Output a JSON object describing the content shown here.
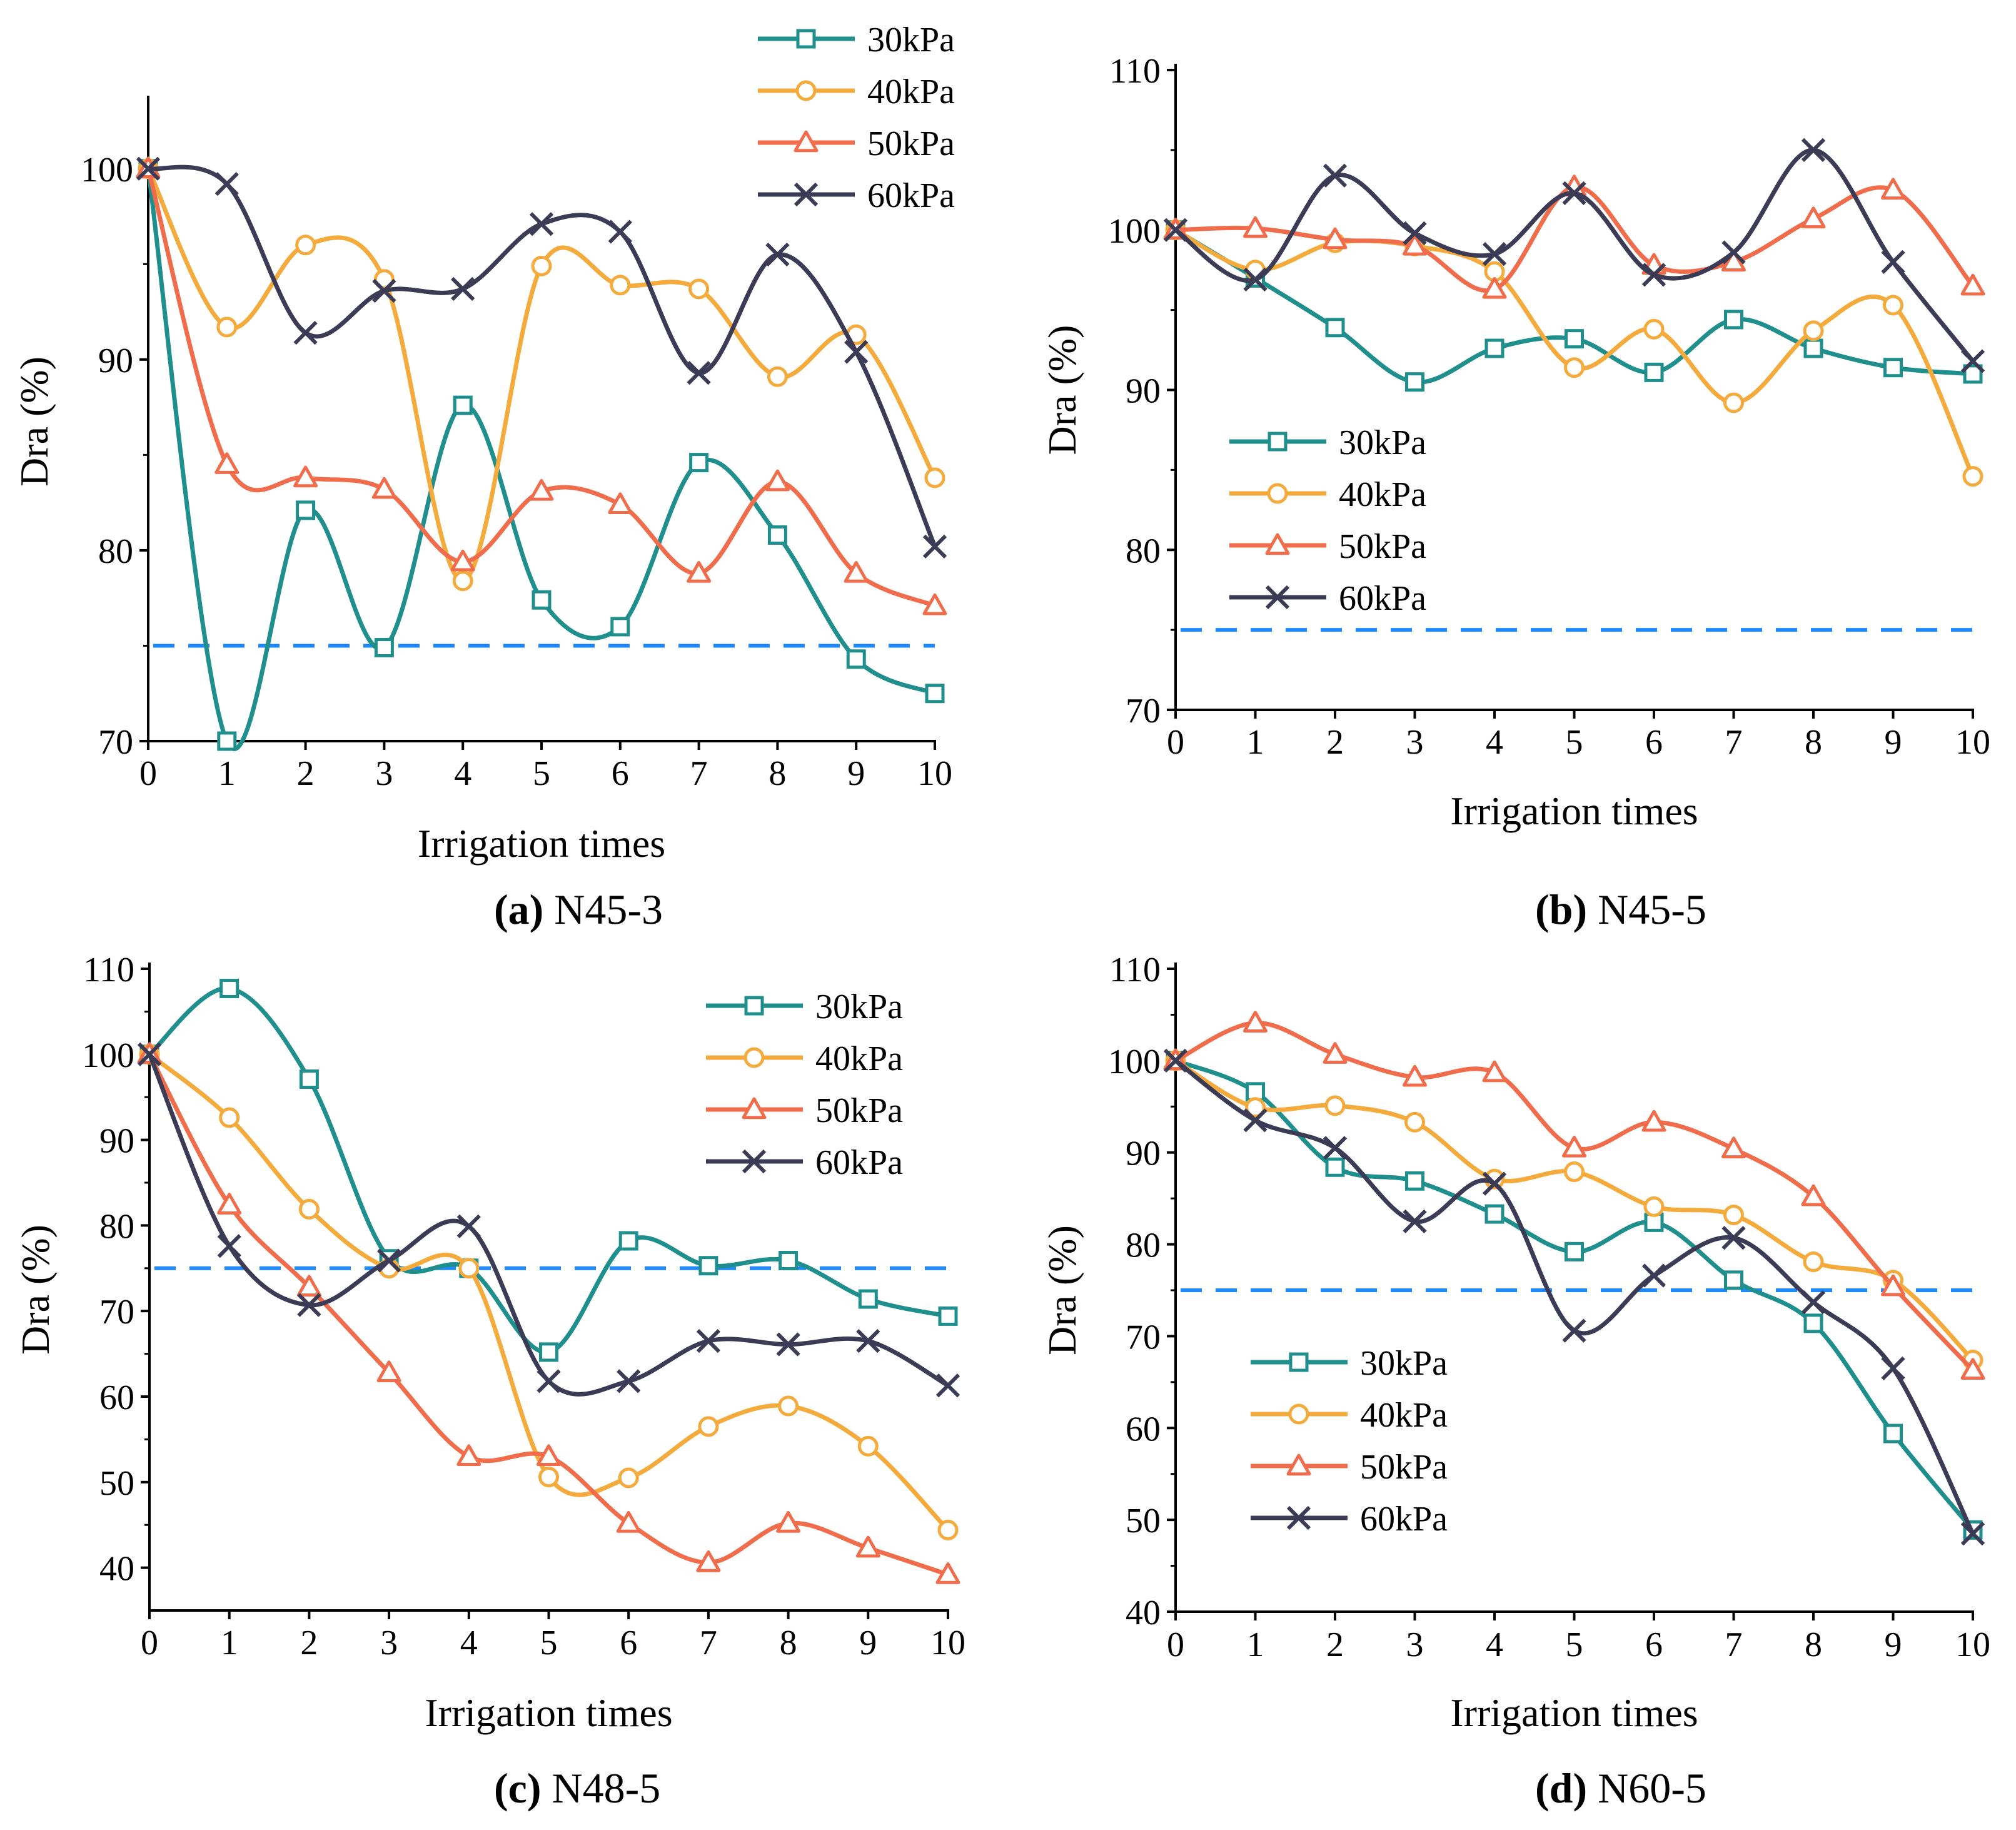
{
  "figure": {
    "series_colors": {
      "30kPa": "#1e8f8c",
      "40kPa": "#f5aa3c",
      "50kPa": "#f06c4b",
      "60kPa": "#3b3b55"
    },
    "threshold_color": "#1e88ff",
    "marker_names": {
      "30kPa": "square-marker",
      "40kPa": "circle-marker",
      "50kPa": "triangle-marker",
      "60kPa": "x-marker"
    }
  },
  "chart_data": [
    {
      "type": "line",
      "panel": "a",
      "caption_letter": "(a)",
      "caption_text": " N45-3",
      "title": "",
      "xlabel": "Irrigation times",
      "ylabel": "Dra (%)",
      "x": [
        0,
        1,
        2,
        3,
        4,
        5,
        6,
        7,
        8,
        9,
        10
      ],
      "xticks": [
        "0",
        "1",
        "2",
        "3",
        "4",
        "5",
        "6",
        "7",
        "8",
        "9",
        "10"
      ],
      "ylim": [
        70,
        103.5
      ],
      "yticks": [
        70,
        80,
        90,
        100
      ],
      "threshold": 75,
      "legend_position": "top-right",
      "series": [
        {
          "name": "30kPa",
          "values": [
            100,
            70.0,
            82.1,
            74.9,
            87.6,
            77.4,
            76.0,
            84.6,
            80.8,
            74.3,
            72.5
          ]
        },
        {
          "name": "40kPa",
          "values": [
            100,
            91.7,
            96.0,
            94.2,
            78.4,
            94.9,
            93.9,
            93.7,
            89.1,
            91.3,
            83.8
          ]
        },
        {
          "name": "50kPa",
          "values": [
            100,
            84.5,
            83.8,
            83.2,
            79.4,
            83.1,
            82.4,
            78.8,
            83.6,
            78.8,
            77.1
          ]
        },
        {
          "name": "60kPa",
          "values": [
            100,
            99.2,
            91.4,
            93.6,
            93.7,
            97.1,
            96.7,
            89.3,
            95.5,
            90.4,
            80.2
          ]
        }
      ]
    },
    {
      "type": "line",
      "panel": "b",
      "caption_letter": "(b)",
      "caption_text": " N45-5",
      "title": "",
      "xlabel": "Irrigation times",
      "ylabel": "Dra (%)",
      "x": [
        0,
        1,
        2,
        3,
        4,
        5,
        6,
        7,
        8,
        9,
        10
      ],
      "xticks": [
        "0",
        "1",
        "2",
        "3",
        "4",
        "5",
        "6",
        "7",
        "8",
        "9",
        "10"
      ],
      "ylim": [
        70,
        110
      ],
      "yticks": [
        70,
        80,
        90,
        100,
        110
      ],
      "threshold": 75,
      "legend_position": "lower-left",
      "series": [
        {
          "name": "30kPa",
          "values": [
            100,
            97.0,
            93.9,
            90.5,
            92.6,
            93.2,
            91.1,
            94.4,
            92.6,
            91.4,
            91.0
          ]
        },
        {
          "name": "40kPa",
          "values": [
            100,
            97.5,
            99.2,
            99.0,
            97.4,
            91.4,
            93.8,
            89.2,
            93.7,
            95.3,
            84.6
          ]
        },
        {
          "name": "50kPa",
          "values": [
            100,
            100.1,
            99.4,
            99.0,
            96.3,
            102.7,
            97.8,
            98.0,
            100.7,
            102.5,
            96.5
          ]
        },
        {
          "name": "60kPa",
          "values": [
            100,
            96.9,
            103.4,
            99.8,
            98.5,
            102.3,
            97.2,
            98.6,
            105.0,
            98.0,
            91.8
          ]
        }
      ]
    },
    {
      "type": "line",
      "panel": "c",
      "caption_letter": "(c)",
      "caption_text": " N48-5",
      "title": "",
      "xlabel": "Irrigation times",
      "ylabel": "Dra (%)",
      "x": [
        0,
        1,
        2,
        3,
        4,
        5,
        6,
        7,
        8,
        9,
        10
      ],
      "xticks": [
        "0",
        "1",
        "2",
        "3",
        "4",
        "5",
        "6",
        "7",
        "8",
        "9",
        "10"
      ],
      "ylim": [
        35,
        110
      ],
      "yticks": [
        40,
        50,
        60,
        70,
        80,
        90,
        100,
        110
      ],
      "threshold": 75,
      "legend_position": "top-right",
      "series": [
        {
          "name": "30kPa",
          "values": [
            100,
            107.7,
            97.1,
            76.1,
            75.0,
            65.2,
            78.2,
            75.3,
            75.9,
            71.4,
            69.4
          ]
        },
        {
          "name": "40kPa",
          "values": [
            100,
            92.6,
            81.9,
            75.0,
            75.0,
            50.6,
            50.5,
            56.5,
            58.9,
            54.2,
            44.4
          ]
        },
        {
          "name": "50kPa",
          "values": [
            100,
            82.4,
            72.8,
            62.8,
            53.0,
            53.0,
            45.2,
            40.6,
            45.2,
            42.3,
            39.2
          ]
        },
        {
          "name": "60kPa",
          "values": [
            100,
            77.6,
            70.7,
            75.9,
            79.9,
            61.8,
            61.8,
            66.5,
            66.1,
            66.5,
            61.3
          ]
        }
      ]
    },
    {
      "type": "line",
      "panel": "d",
      "caption_letter": "(d)",
      "caption_text": " N60-5",
      "title": "",
      "xlabel": "Irrigation times",
      "ylabel": "Dra (%)",
      "x": [
        0,
        1,
        2,
        3,
        4,
        5,
        6,
        7,
        8,
        9,
        10
      ],
      "xticks": [
        "0",
        "1",
        "2",
        "3",
        "4",
        "5",
        "6",
        "7",
        "8",
        "9",
        "10"
      ],
      "ylim": [
        40,
        110
      ],
      "yticks": [
        40,
        50,
        60,
        70,
        80,
        90,
        100,
        110
      ],
      "threshold": 75,
      "legend_position": "lower-left",
      "series": [
        {
          "name": "30kPa",
          "values": [
            100,
            96.6,
            88.4,
            86.9,
            83.3,
            79.2,
            82.4,
            76.1,
            71.4,
            59.4,
            48.9
          ]
        },
        {
          "name": "40kPa",
          "values": [
            100,
            94.9,
            95.1,
            93.3,
            87.1,
            87.9,
            84.1,
            83.2,
            78.1,
            76.1,
            67.4
          ]
        },
        {
          "name": "50kPa",
          "values": [
            100,
            104.1,
            100.7,
            98.2,
            98.7,
            90.5,
            93.3,
            90.4,
            85.2,
            75.4,
            66.3
          ]
        },
        {
          "name": "60kPa",
          "values": [
            100,
            93.5,
            90.5,
            82.5,
            86.6,
            70.6,
            76.6,
            80.7,
            73.7,
            66.5,
            48.5
          ]
        }
      ]
    }
  ]
}
